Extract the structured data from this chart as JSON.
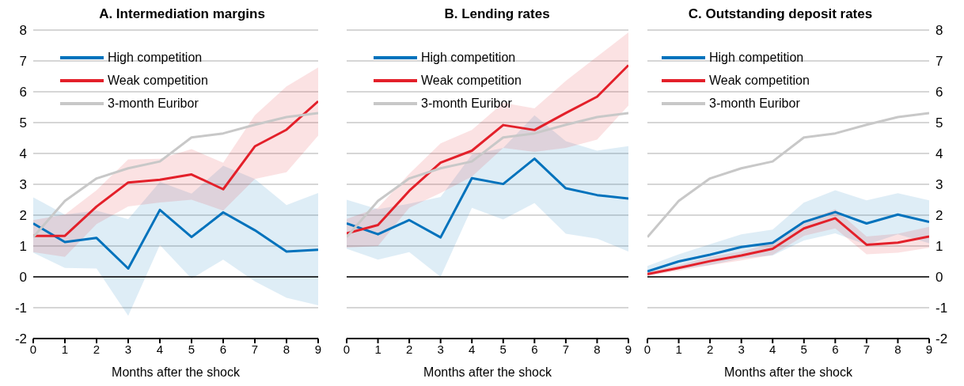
{
  "chart_data": [
    {
      "type": "line",
      "title": "A. Intermediation margins",
      "xlabel": "Months after the shock",
      "x": [
        0,
        1,
        2,
        3,
        4,
        5,
        6,
        7,
        8,
        9
      ],
      "xlim": [
        0,
        9
      ],
      "xticks": [
        0,
        1,
        2,
        3,
        4,
        5,
        6,
        7,
        8,
        9
      ],
      "ylim": [
        -2,
        8
      ],
      "yticks": [
        -2,
        -1,
        0,
        1,
        2,
        3,
        4,
        5,
        6,
        7,
        8
      ],
      "grid": "y",
      "legend": "top left",
      "ref_lines": [
        {
          "axis": "y",
          "value": 0,
          "color": "#000000"
        }
      ],
      "series": [
        {
          "name": "High competition",
          "color": "#0072bc",
          "values": [
            1.73,
            1.13,
            1.26,
            0.27,
            2.17,
            1.29,
            2.09,
            1.51,
            0.82,
            0.88
          ],
          "lower": [
            0.78,
            0.29,
            0.27,
            -1.26,
            1.03,
            -0.06,
            0.56,
            -0.15,
            -0.68,
            -0.92
          ],
          "upper": [
            2.58,
            2.02,
            2.15,
            1.87,
            3.08,
            2.7,
            3.6,
            3.17,
            2.33,
            2.72
          ]
        },
        {
          "name": "Weak competition",
          "color": "#e3202a",
          "values": [
            1.33,
            1.33,
            2.28,
            3.06,
            3.15,
            3.32,
            2.84,
            4.23,
            4.77,
            5.69
          ],
          "lower": [
            0.8,
            0.65,
            1.71,
            2.28,
            2.41,
            2.5,
            2.15,
            3.17,
            3.39,
            4.58
          ],
          "upper": [
            1.84,
            2.02,
            2.81,
            3.81,
            3.83,
            4.14,
            3.7,
            5.24,
            6.17,
            6.79
          ]
        },
        {
          "name": "3-month Euribor",
          "color": "#c8c8c8",
          "values": [
            1.29,
            2.46,
            3.19,
            3.52,
            3.74,
            4.52,
            4.65,
            4.93,
            5.18,
            5.31
          ]
        }
      ]
    },
    {
      "type": "line",
      "title": "B. Lending rates",
      "xlabel": "Months after the shock",
      "x": [
        0,
        1,
        2,
        3,
        4,
        5,
        6,
        7,
        8,
        9
      ],
      "xlim": [
        0,
        9
      ],
      "xticks": [
        0,
        1,
        2,
        3,
        4,
        5,
        6,
        7,
        8,
        9
      ],
      "ylim": [
        -2,
        8
      ],
      "yticks": [
        -2,
        -1,
        0,
        1,
        2,
        3,
        4,
        5,
        6,
        7,
        8
      ],
      "tick_labels": "x",
      "grid": "y",
      "legend": "top left",
      "ref_lines": [
        {
          "axis": "y",
          "value": 0,
          "color": "#000000"
        }
      ],
      "series": [
        {
          "name": "High competition",
          "color": "#0072bc",
          "values": [
            1.73,
            1.38,
            1.84,
            1.28,
            3.2,
            3.01,
            3.83,
            2.87,
            2.65,
            2.54
          ],
          "lower": [
            0.91,
            0.56,
            0.8,
            0,
            2.24,
            1.86,
            2.39,
            1.4,
            1.24,
            0.82
          ],
          "upper": [
            2.5,
            2.19,
            2.37,
            2.59,
            3.96,
            4.18,
            5.24,
            4.4,
            4.09,
            4.24
          ]
        },
        {
          "name": "Weak competition",
          "color": "#e3202a",
          "values": [
            1.41,
            1.68,
            2.79,
            3.7,
            4.09,
            4.92,
            4.76,
            5.31,
            5.84,
            6.86
          ],
          "lower": [
            0.95,
            1.0,
            2.24,
            2.72,
            3.25,
            4.18,
            4.05,
            4.18,
            4.45,
            5.55
          ],
          "upper": [
            1.88,
            2.24,
            3.34,
            4.33,
            4.76,
            5.64,
            5.46,
            6.35,
            7.14,
            7.92
          ]
        },
        {
          "name": "3-month Euribor",
          "color": "#c8c8c8",
          "values": [
            1.29,
            2.46,
            3.19,
            3.52,
            3.74,
            4.52,
            4.65,
            4.93,
            5.18,
            5.31
          ]
        }
      ]
    },
    {
      "type": "line",
      "title": "C. Outstanding deposit rates",
      "xlabel": "Months after the shock",
      "x": [
        0,
        1,
        2,
        3,
        4,
        5,
        6,
        7,
        8,
        9
      ],
      "xlim": [
        0,
        9
      ],
      "xticks": [
        0,
        1,
        2,
        3,
        4,
        5,
        6,
        7,
        8,
        9
      ],
      "ylim": [
        -2,
        8
      ],
      "yticks": [
        -2,
        -1,
        0,
        1,
        2,
        3,
        4,
        5,
        6,
        7,
        8
      ],
      "grid": "y",
      "legend": "top left",
      "ref_lines": [
        {
          "axis": "y",
          "value": 0,
          "color": "#000000"
        }
      ],
      "series": [
        {
          "name": "High competition",
          "color": "#0072bc",
          "values": [
            0.18,
            0.5,
            0.72,
            0.97,
            1.1,
            1.78,
            2.1,
            1.73,
            2.02,
            1.78
          ],
          "lower": [
            0.03,
            0.25,
            0.38,
            0.6,
            0.69,
            1.18,
            1.41,
            1.04,
            1.38,
            1.09
          ],
          "upper": [
            0.35,
            0.73,
            1.06,
            1.38,
            1.53,
            2.41,
            2.81,
            2.48,
            2.71,
            2.48
          ]
        },
        {
          "name": "Weak competition",
          "color": "#e3202a",
          "values": [
            0.09,
            0.29,
            0.51,
            0.69,
            0.91,
            1.57,
            1.9,
            1.04,
            1.11,
            1.31
          ],
          "lower": [
            0.03,
            0.2,
            0.38,
            0.53,
            0.71,
            1.33,
            1.57,
            0.73,
            0.78,
            0.94
          ],
          "upper": [
            0.16,
            0.38,
            0.65,
            0.82,
            1.09,
            1.79,
            2.19,
            1.31,
            1.4,
            1.62
          ]
        },
        {
          "name": "3-month Euribor",
          "color": "#c8c8c8",
          "values": [
            1.29,
            2.46,
            3.19,
            3.52,
            3.74,
            4.52,
            4.65,
            4.93,
            5.18,
            5.31
          ]
        }
      ]
    }
  ]
}
